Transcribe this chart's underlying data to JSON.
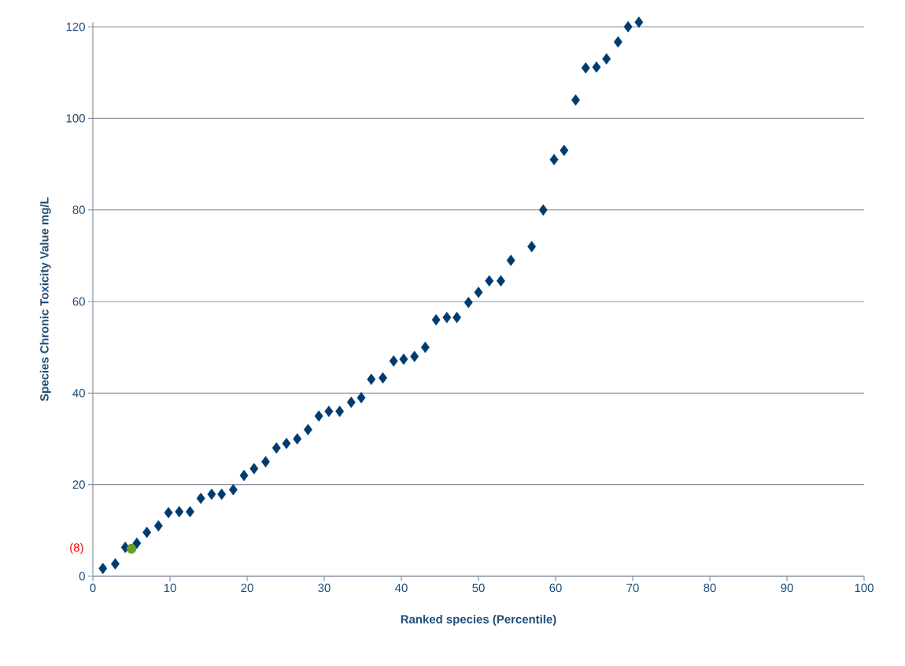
{
  "chart_data": {
    "type": "scatter",
    "xlabel": "Ranked species (Percentile)",
    "ylabel": "Species Chronic Toxicity Value mg/L",
    "xlim": [
      0,
      100
    ],
    "ylim": [
      0,
      121
    ],
    "xticks": [
      0,
      10,
      20,
      30,
      40,
      50,
      60,
      70,
      80,
      90,
      100
    ],
    "yticks": [
      0,
      20,
      40,
      60,
      80,
      100,
      120
    ],
    "grid": "y",
    "series": [
      {
        "color": "#003b6f",
        "marker": "diamond",
        "x": [
          1.3,
          2.9,
          4.2,
          5.7,
          7.0,
          8.5,
          9.8,
          11.2,
          12.6,
          14.0,
          15.4,
          16.7,
          18.2,
          19.6,
          20.9,
          22.4,
          23.8,
          25.1,
          26.5,
          27.9,
          29.3,
          30.6,
          32.0,
          33.5,
          34.8,
          36.1,
          37.6,
          39.0,
          40.3,
          41.7,
          43.1,
          44.5,
          45.9,
          47.2,
          48.7,
          50.0,
          51.4,
          52.9,
          54.2,
          56.9,
          58.4,
          59.8,
          61.1,
          62.6,
          63.9,
          65.3,
          66.6,
          68.1,
          69.4,
          70.8
        ],
        "values": [
          1.7,
          2.7,
          6.3,
          7.2,
          9.6,
          11,
          13.9,
          14.1,
          14.1,
          17,
          17.9,
          17.9,
          18.9,
          22,
          23.5,
          25,
          28,
          29,
          30,
          32,
          35,
          36,
          36,
          38,
          39,
          43,
          43.3,
          47,
          47.4,
          48,
          50,
          56,
          56.5,
          56.5,
          59.8,
          62,
          64.5,
          64.5,
          69,
          72,
          80,
          91,
          93,
          104,
          111,
          111.2,
          113,
          116.7,
          120,
          121
        ]
      },
      {
        "color": "#6aa121",
        "marker": "circle",
        "x": [
          5.0
        ],
        "values": [
          6.0
        ]
      }
    ],
    "annotations": [
      "(8)"
    ]
  }
}
